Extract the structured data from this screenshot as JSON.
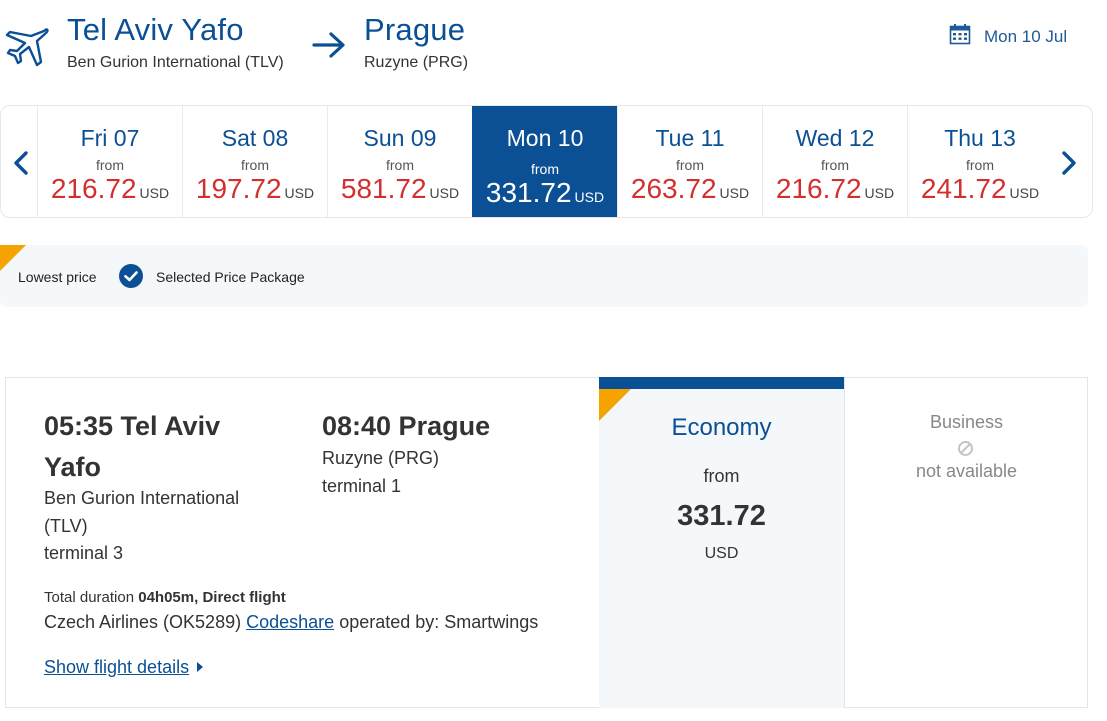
{
  "header": {
    "origin_city": "Tel Aviv Yafo",
    "origin_airport": "Ben Gurion International (TLV)",
    "destination_city": "Prague",
    "destination_airport": "Ruzyne (PRG)",
    "date": "Mon 10 Jul",
    "icons": [
      "airplane-icon",
      "arrow-right-icon",
      "calendar-icon"
    ]
  },
  "carousel": {
    "prev_icon": "chevron-left-icon",
    "next_icon": "chevron-right-icon",
    "days": [
      {
        "label": "Fri 07",
        "from": "from",
        "price": "216.72",
        "currency": "USD",
        "selected": false
      },
      {
        "label": "Sat 08",
        "from": "from",
        "price": "197.72",
        "currency": "USD",
        "selected": false
      },
      {
        "label": "Sun 09",
        "from": "from",
        "price": "581.72",
        "currency": "USD",
        "selected": false
      },
      {
        "label": "Mon 10",
        "from": "from",
        "price": "331.72",
        "currency": "USD",
        "selected": true
      },
      {
        "label": "Tue 11",
        "from": "from",
        "price": "263.72",
        "currency": "USD",
        "selected": false
      },
      {
        "label": "Wed 12",
        "from": "from",
        "price": "216.72",
        "currency": "USD",
        "selected": false
      },
      {
        "label": "Thu 13",
        "from": "from",
        "price": "241.72",
        "currency": "USD",
        "selected": false
      }
    ]
  },
  "legend": {
    "lowest": "Lowest price",
    "selected": "Selected Price Package"
  },
  "flight": {
    "departure_time_city": "05:35 Tel Aviv Yafo",
    "departure_airport": "Ben Gurion International (TLV)",
    "departure_terminal": "terminal 3",
    "arrival_time_city": "08:40 Prague",
    "arrival_airport": "Ruzyne (PRG)",
    "arrival_terminal": "terminal 1",
    "duration_label": "Total duration",
    "duration_value": "04h05m, Direct flight",
    "carrier": "Czech Airlines (OK5289)",
    "codeshare": "Codeshare",
    "operated_by": "operated by: Smartwings",
    "details_link": "Show flight details"
  },
  "fares": {
    "economy": {
      "name": "Economy",
      "from": "from",
      "price": "331.72",
      "currency": "USD"
    },
    "business": {
      "name": "Business",
      "status": "not available"
    }
  },
  "colors": {
    "brand": "#0b4f94",
    "price_red": "#d32f2f",
    "accent_orange": "#f5a300",
    "panel_bg": "#f5f8fb"
  }
}
